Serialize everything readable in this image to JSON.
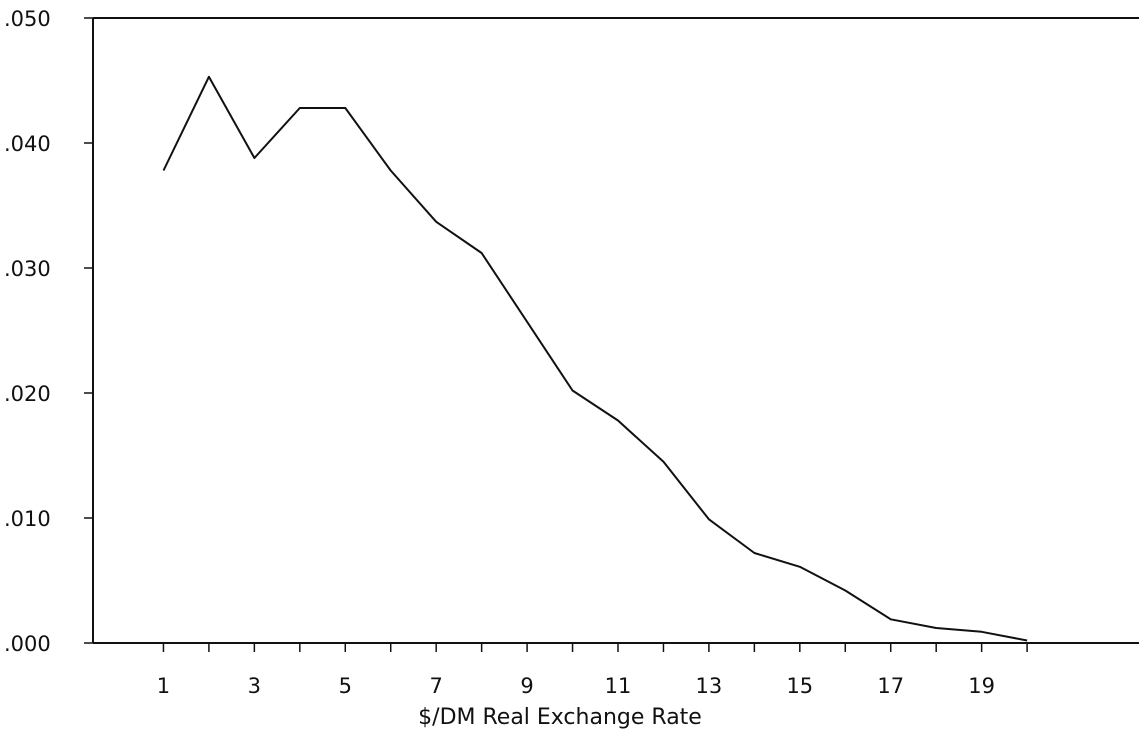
{
  "chart_data": {
    "type": "line",
    "title": "",
    "xlabel": "$/DM Real Exchange Rate",
    "ylabel": "",
    "x_tick_labels": [
      "1",
      "3",
      "5",
      "7",
      "9",
      "11",
      "13",
      "15",
      "17",
      "19"
    ],
    "y_tick_labels": [
      ".000",
      ".010",
      ".020",
      ".030",
      ".040",
      ".050"
    ],
    "xlim": [
      0,
      22
    ],
    "ylim": [
      0,
      0.05
    ],
    "grid": false,
    "series": [
      {
        "x": [
          1,
          2,
          3,
          4,
          5,
          6,
          7,
          8,
          9,
          10,
          11,
          12,
          13,
          14,
          15,
          16,
          17,
          18,
          19,
          20
        ],
        "y": [
          0.0378,
          0.0453,
          0.0388,
          0.0428,
          0.0428,
          0.0378,
          0.0337,
          0.0312,
          0.0257,
          0.0202,
          0.0178,
          0.0145,
          0.0099,
          0.0072,
          0.0061,
          0.0042,
          0.0019,
          0.0012,
          0.0009,
          0.0002
        ]
      }
    ],
    "colors": {
      "line": "#111111",
      "axis": "#111111"
    }
  }
}
